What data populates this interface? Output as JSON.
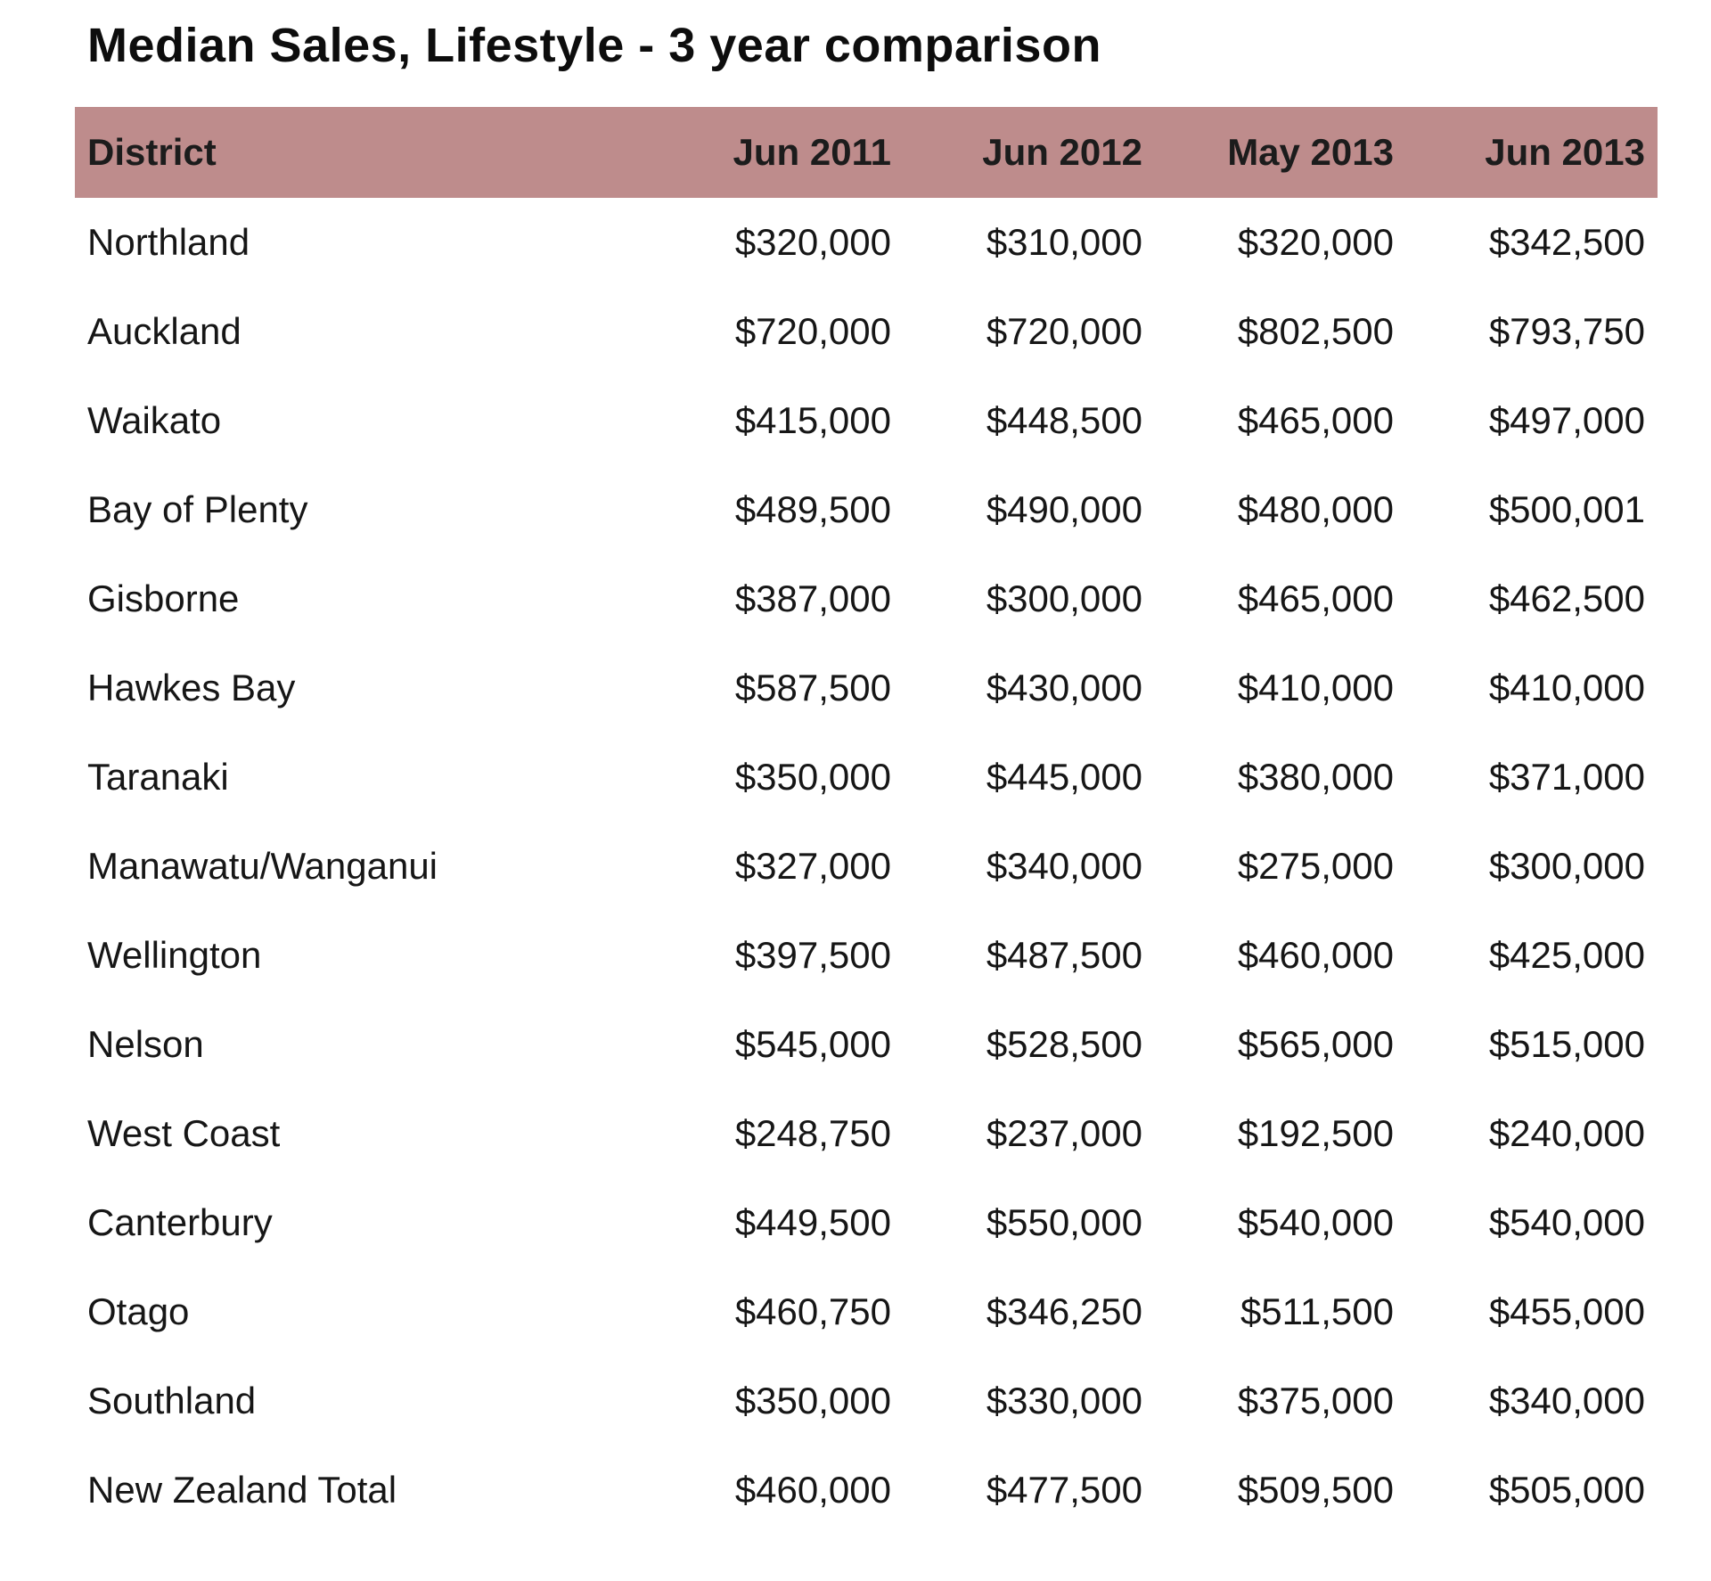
{
  "title": "Median Sales, Lifestyle - 3 year comparison",
  "colors": {
    "header_background": "#be8c8c",
    "text": "#111111",
    "background": "#ffffff"
  },
  "table": {
    "headers": [
      "District",
      "Jun 2011",
      "Jun 2012",
      "May 2013",
      "Jun 2013"
    ],
    "rows": [
      [
        "Northland",
        "$320,000",
        "$310,000",
        "$320,000",
        "$342,500"
      ],
      [
        "Auckland",
        "$720,000",
        "$720,000",
        "$802,500",
        "$793,750"
      ],
      [
        "Waikato",
        "$415,000",
        "$448,500",
        "$465,000",
        "$497,000"
      ],
      [
        "Bay of Plenty",
        "$489,500",
        "$490,000",
        "$480,000",
        "$500,001"
      ],
      [
        "Gisborne",
        "$387,000",
        "$300,000",
        "$465,000",
        "$462,500"
      ],
      [
        "Hawkes Bay",
        "$587,500",
        "$430,000",
        "$410,000",
        "$410,000"
      ],
      [
        "Taranaki",
        "$350,000",
        "$445,000",
        "$380,000",
        "$371,000"
      ],
      [
        "Manawatu/Wanganui",
        "$327,000",
        "$340,000",
        "$275,000",
        "$300,000"
      ],
      [
        "Wellington",
        "$397,500",
        "$487,500",
        "$460,000",
        "$425,000"
      ],
      [
        "Nelson",
        "$545,000",
        "$528,500",
        "$565,000",
        "$515,000"
      ],
      [
        "West Coast",
        "$248,750",
        "$237,000",
        "$192,500",
        "$240,000"
      ],
      [
        "Canterbury",
        "$449,500",
        "$550,000",
        "$540,000",
        "$540,000"
      ],
      [
        "Otago",
        "$460,750",
        "$346,250",
        "$511,500",
        "$455,000"
      ],
      [
        "Southland",
        "$350,000",
        "$330,000",
        "$375,000",
        "$340,000"
      ],
      [
        "New Zealand Total",
        "$460,000",
        "$477,500",
        "$509,500",
        "$505,000"
      ]
    ]
  }
}
